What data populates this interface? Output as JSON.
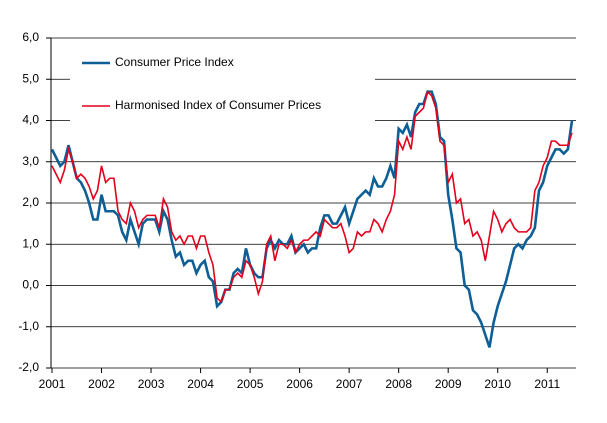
{
  "chart_data": {
    "type": "line",
    "categories": [
      "2001",
      null,
      null,
      null,
      null,
      null,
      null,
      null,
      null,
      null,
      null,
      null,
      "2002",
      null,
      null,
      null,
      null,
      null,
      null,
      null,
      null,
      null,
      null,
      null,
      "2003",
      null,
      null,
      null,
      null,
      null,
      null,
      null,
      null,
      null,
      null,
      null,
      "2004",
      null,
      null,
      null,
      null,
      null,
      null,
      null,
      null,
      null,
      null,
      null,
      "2005",
      null,
      null,
      null,
      null,
      null,
      null,
      null,
      null,
      null,
      null,
      null,
      "2006",
      null,
      null,
      null,
      null,
      null,
      null,
      null,
      null,
      null,
      null,
      null,
      "2007",
      null,
      null,
      null,
      null,
      null,
      null,
      null,
      null,
      null,
      null,
      null,
      "2008",
      null,
      null,
      null,
      null,
      null,
      null,
      null,
      null,
      null,
      null,
      null,
      "2009",
      null,
      null,
      null,
      null,
      null,
      null,
      null,
      null,
      null,
      null,
      null,
      "2010",
      null,
      null,
      null,
      null,
      null,
      null,
      null,
      null,
      null,
      null,
      null,
      "2011",
      null,
      null,
      null,
      null,
      null,
      null
    ],
    "series": [
      {
        "name": "Consumer Price Index",
        "color": "#0d5f96",
        "values": [
          3.3,
          3.1,
          2.9,
          3.0,
          3.4,
          3.0,
          2.6,
          2.5,
          2.3,
          2.0,
          1.6,
          1.6,
          2.2,
          1.8,
          1.8,
          1.8,
          1.7,
          1.3,
          1.1,
          1.6,
          1.3,
          1.0,
          1.5,
          1.6,
          1.6,
          1.6,
          1.3,
          1.8,
          1.6,
          1.1,
          0.7,
          0.8,
          0.5,
          0.6,
          0.6,
          0.3,
          0.5,
          0.6,
          0.2,
          0.1,
          -0.5,
          -0.4,
          -0.1,
          -0.1,
          0.3,
          0.4,
          0.3,
          0.9,
          0.5,
          0.3,
          0.2,
          0.2,
          0.9,
          1.1,
          0.9,
          1.1,
          1.0,
          1.0,
          1.2,
          0.8,
          0.9,
          1.0,
          0.8,
          0.9,
          0.9,
          1.4,
          1.7,
          1.7,
          1.5,
          1.5,
          1.7,
          1.9,
          1.5,
          1.8,
          2.1,
          2.2,
          2.3,
          2.2,
          2.6,
          2.4,
          2.4,
          2.6,
          2.9,
          2.6,
          3.8,
          3.7,
          3.9,
          3.6,
          4.2,
          4.4,
          4.4,
          4.7,
          4.7,
          4.4,
          3.6,
          3.5,
          2.2,
          1.6,
          0.9,
          0.8,
          0.0,
          -0.1,
          -0.6,
          -0.7,
          -0.9,
          -1.2,
          -1.5,
          -0.9,
          -0.5,
          -0.2,
          0.1,
          0.5,
          0.9,
          1.0,
          0.9,
          1.1,
          1.2,
          1.4,
          2.3,
          2.5,
          2.9,
          3.1,
          3.3,
          3.3,
          3.2,
          3.3,
          4.0
        ]
      },
      {
        "name": "Harmonised Index of Consumer Prices",
        "color": "#e3001b",
        "values": [
          2.9,
          2.7,
          2.5,
          2.8,
          3.3,
          3.0,
          2.6,
          2.7,
          2.6,
          2.4,
          2.1,
          2.3,
          2.9,
          2.5,
          2.6,
          2.6,
          1.8,
          1.6,
          1.5,
          2.0,
          1.8,
          1.4,
          1.6,
          1.7,
          1.7,
          1.7,
          1.4,
          2.1,
          1.9,
          1.3,
          1.1,
          1.2,
          1.0,
          1.2,
          1.2,
          0.9,
          1.2,
          1.2,
          0.8,
          0.5,
          -0.3,
          -0.4,
          -0.1,
          -0.1,
          0.2,
          0.3,
          0.2,
          0.6,
          0.5,
          0.2,
          -0.2,
          0.1,
          1.0,
          1.2,
          0.6,
          1.0,
          1.0,
          0.9,
          1.1,
          0.8,
          1.0,
          1.1,
          1.1,
          1.2,
          1.3,
          1.2,
          1.6,
          1.5,
          1.4,
          1.4,
          1.5,
          1.2,
          0.8,
          0.9,
          1.3,
          1.2,
          1.3,
          1.3,
          1.6,
          1.5,
          1.3,
          1.6,
          1.8,
          2.2,
          3.5,
          3.3,
          3.6,
          3.3,
          4.1,
          4.2,
          4.3,
          4.7,
          4.6,
          4.3,
          3.5,
          3.4,
          2.5,
          2.7,
          2.0,
          2.1,
          1.5,
          1.6,
          1.2,
          1.3,
          1.1,
          0.6,
          1.2,
          1.8,
          1.6,
          1.3,
          1.5,
          1.6,
          1.4,
          1.3,
          1.3,
          1.3,
          1.4,
          2.3,
          2.5,
          2.9,
          3.1,
          3.5,
          3.5,
          3.4,
          3.4,
          3.4,
          3.7
        ]
      }
    ],
    "ylim": [
      -2,
      6
    ],
    "yticks": [
      {
        "value": -2,
        "label": "-2,0"
      },
      {
        "value": -1,
        "label": "-1,0"
      },
      {
        "value": 0,
        "label": "0,0"
      },
      {
        "value": 1,
        "label": "1,0"
      },
      {
        "value": 2,
        "label": "2,0"
      },
      {
        "value": 3,
        "label": "3,0"
      },
      {
        "value": 4,
        "label": "4,0"
      },
      {
        "value": 5,
        "label": "5,0"
      },
      {
        "value": 6,
        "label": "6,0"
      }
    ],
    "grid": true,
    "legend": "upper-left"
  }
}
